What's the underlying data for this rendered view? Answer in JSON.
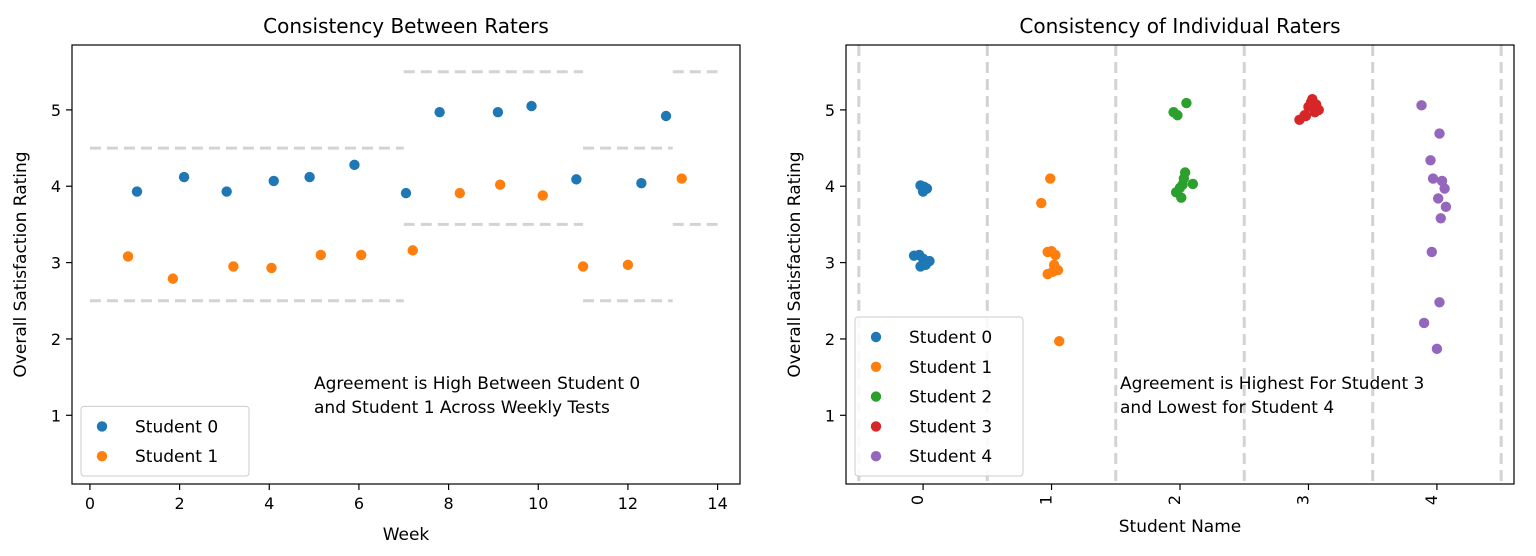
{
  "colors": {
    "Student 0": "#1f77b4",
    "Student 1": "#ff7f0e",
    "Student 2": "#2ca02c",
    "Student 3": "#d62728",
    "Student 4": "#9467bd",
    "guide": "#d3d3d3"
  },
  "chart_data": [
    {
      "type": "scatter",
      "title": "Consistency Between Raters",
      "xlabel": "Week",
      "ylabel": "Overall Satisfaction Rating",
      "xlim": [
        -0.4,
        14.5
      ],
      "ylim": [
        0.1,
        5.85
      ],
      "xticks": [
        0,
        2,
        4,
        6,
        8,
        10,
        12,
        14
      ],
      "yticks": [
        1,
        2,
        3,
        4,
        5
      ],
      "grid": false,
      "legend": "lower-left",
      "annotation": [
        "Agreement is High Between Student 0",
        "and Student 1 Across Weekly Tests"
      ],
      "series": [
        {
          "name": "Student 0",
          "points": [
            [
              1.05,
              3.93
            ],
            [
              2.1,
              4.12
            ],
            [
              3.05,
              3.93
            ],
            [
              4.1,
              4.07
            ],
            [
              4.9,
              4.12
            ],
            [
              5.9,
              4.28
            ],
            [
              7.05,
              3.91
            ],
            [
              7.8,
              4.97
            ],
            [
              9.1,
              4.97
            ],
            [
              9.85,
              5.05
            ],
            [
              10.85,
              4.09
            ],
            [
              12.3,
              4.04
            ],
            [
              12.85,
              4.92
            ]
          ]
        },
        {
          "name": "Student 1",
          "points": [
            [
              0.85,
              3.08
            ],
            [
              1.85,
              2.79
            ],
            [
              3.2,
              2.95
            ],
            [
              4.05,
              2.93
            ],
            [
              5.15,
              3.1
            ],
            [
              6.05,
              3.1
            ],
            [
              7.2,
              3.16
            ],
            [
              8.25,
              3.91
            ],
            [
              9.15,
              4.02
            ],
            [
              10.1,
              3.88
            ],
            [
              11.0,
              2.95
            ],
            [
              12.0,
              2.97
            ],
            [
              13.2,
              4.1
            ]
          ]
        }
      ],
      "reference_bands": [
        {
          "x": [
            0,
            7
          ],
          "y": [
            2.5,
            4.5
          ]
        },
        {
          "x": [
            7,
            11
          ],
          "y": [
            3.5,
            5.5
          ]
        },
        {
          "x": [
            11,
            13
          ],
          "y": [
            2.5,
            4.5
          ]
        },
        {
          "x": [
            13,
            14
          ],
          "y": [
            3.5,
            5.5
          ]
        }
      ]
    },
    {
      "type": "scatter",
      "title": "Consistency of Individual Raters",
      "xlabel": "Student Name",
      "ylabel": "Overall Satisfaction Rating",
      "categories": [
        "0",
        "1",
        "2",
        "3",
        "4"
      ],
      "ylim": [
        0.1,
        5.85
      ],
      "yticks": [
        1,
        2,
        3,
        4,
        5
      ],
      "grid": false,
      "legend": "lower-left",
      "annotation": [
        "Agreement is Highest For Student 3",
        "and Lowest for Student 4"
      ],
      "separators": [
        -0.5,
        0.5,
        1.5,
        2.5,
        3.5,
        4.5
      ],
      "series": [
        {
          "name": "Student 0",
          "points": [
            [
              -0.07,
              3.09
            ],
            [
              -0.03,
              3.1
            ],
            [
              0.0,
              3.05
            ],
            [
              0.03,
              3.0
            ],
            [
              0.05,
              3.02
            ],
            [
              -0.02,
              2.95
            ],
            [
              0.02,
              2.97
            ],
            [
              0.0,
              3.93
            ],
            [
              -0.02,
              4.01
            ],
            [
              0.03,
              3.97
            ],
            [
              0.01,
              3.99
            ]
          ]
        },
        {
          "name": "Student 1",
          "points": [
            [
              0.92,
              3.78
            ],
            [
              0.99,
              4.1
            ],
            [
              0.97,
              3.14
            ],
            [
              1.0,
              3.15
            ],
            [
              1.03,
              3.1
            ],
            [
              1.02,
              2.97
            ],
            [
              1.05,
              2.9
            ],
            [
              0.97,
              2.85
            ],
            [
              1.01,
              2.88
            ],
            [
              1.06,
              1.97
            ]
          ]
        },
        {
          "name": "Student 2",
          "points": [
            [
              1.95,
              4.97
            ],
            [
              1.98,
              4.93
            ],
            [
              2.05,
              5.09
            ],
            [
              1.97,
              3.92
            ],
            [
              2.01,
              3.85
            ],
            [
              2.03,
              4.1
            ],
            [
              2.04,
              4.18
            ],
            [
              2.02,
              4.02
            ],
            [
              2.1,
              4.03
            ],
            [
              2.0,
              3.98
            ]
          ]
        },
        {
          "name": "Student 3",
          "points": [
            [
              2.93,
              4.87
            ],
            [
              2.97,
              4.93
            ],
            [
              3.0,
              5.04
            ],
            [
              3.02,
              5.1
            ],
            [
              3.05,
              4.97
            ],
            [
              3.08,
              5.0
            ],
            [
              3.03,
              5.14
            ],
            [
              2.98,
              4.92
            ],
            [
              3.06,
              5.07
            ]
          ]
        },
        {
          "name": "Student 4",
          "points": [
            [
              3.88,
              5.06
            ],
            [
              3.95,
              4.34
            ],
            [
              3.97,
              4.1
            ],
            [
              4.02,
              4.69
            ],
            [
              4.04,
              4.07
            ],
            [
              4.06,
              3.97
            ],
            [
              4.01,
              3.84
            ],
            [
              4.07,
              3.73
            ],
            [
              4.03,
              3.58
            ],
            [
              3.96,
              3.14
            ],
            [
              4.02,
              2.48
            ],
            [
              3.9,
              2.21
            ],
            [
              4.0,
              1.87
            ]
          ]
        }
      ]
    }
  ]
}
